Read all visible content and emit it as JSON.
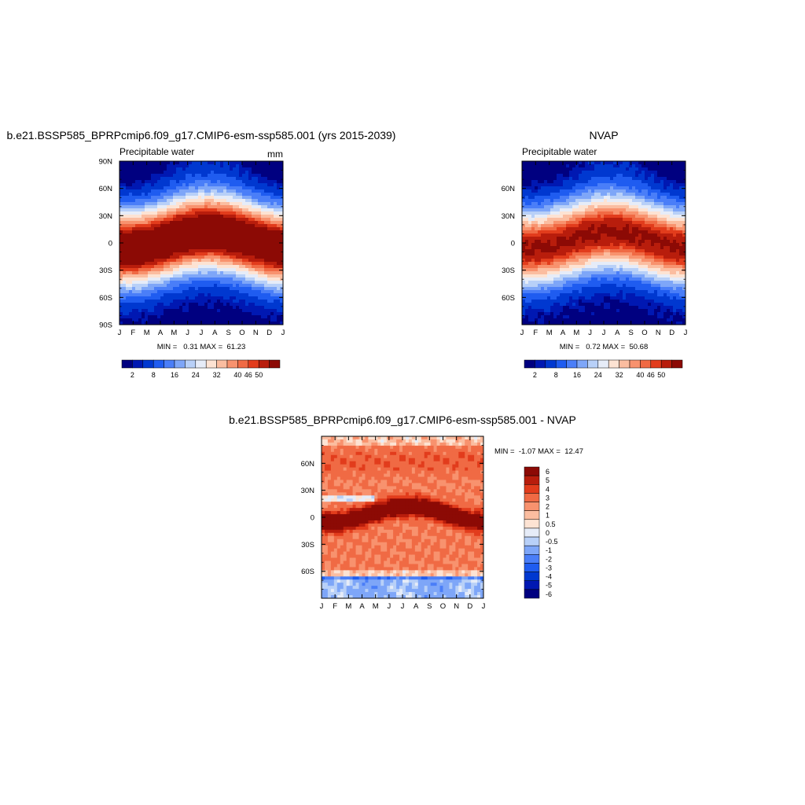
{
  "palette": [
    "#000080",
    "#0018b2",
    "#0038d0",
    "#1f5cf0",
    "#4a7ef8",
    "#7ea6f8",
    "#b8d0f8",
    "#e6ecf8",
    "#fde3d3",
    "#fbbda0",
    "#f8926e",
    "#f06a44",
    "#e23c1c",
    "#b81d0c",
    "#8c0a05"
  ],
  "chart_data": [
    {
      "id": "model",
      "type": "contour",
      "title": "b.e21.BSSP585_BPRPcmip6.f09_g17.CMIP6-esm-ssp585.001 (yrs 2015-2039)",
      "left_label": "Precipitable water",
      "right_label": "mm",
      "x_tick_labels": [
        "J",
        "F",
        "M",
        "A",
        "M",
        "J",
        "J",
        "A",
        "S",
        "O",
        "N",
        "D",
        "J"
      ],
      "y_tick_labels": [
        "90N",
        "60N",
        "30N",
        "0",
        "30S",
        "60S",
        "90S"
      ],
      "y_range": [
        -90,
        90
      ],
      "stats_text": "MIN =   0.31 MAX =  61.23",
      "colorbar_labels": [
        "2",
        "8",
        "16",
        "24",
        "32",
        "40",
        "46",
        "50"
      ],
      "colorbar_levels": [
        2,
        4,
        8,
        12,
        16,
        20,
        24,
        28,
        32,
        36,
        40,
        43,
        46,
        50
      ],
      "field": {
        "amp": 60,
        "width": 30,
        "noise": 1.2
      }
    },
    {
      "id": "obs",
      "type": "contour",
      "title": "NVAP",
      "left_label": "Precipitable water",
      "right_label": "",
      "x_tick_labels": [
        "J",
        "F",
        "M",
        "A",
        "M",
        "J",
        "J",
        "A",
        "S",
        "O",
        "N",
        "D",
        "J"
      ],
      "y_tick_labels": [
        "60N",
        "30N",
        "0",
        "30S",
        "60S"
      ],
      "y_range": [
        -90,
        90
      ],
      "stats_text": "MIN =   0.72 MAX =  50.68",
      "colorbar_labels": [
        "2",
        "8",
        "16",
        "24",
        "32",
        "40",
        "46",
        "50"
      ],
      "colorbar_levels": [
        2,
        4,
        8,
        12,
        16,
        20,
        24,
        28,
        32,
        36,
        40,
        43,
        46,
        50
      ],
      "field": {
        "amp": 51,
        "width": 30,
        "noise": 1.5
      }
    },
    {
      "id": "diff",
      "type": "contour",
      "title": "b.e21.BSSP585_BPRPcmip6.f09_g17.CMIP6-esm-ssp585.001 - NVAP",
      "left_label": "",
      "right_label": "",
      "x_tick_labels": [
        "J",
        "F",
        "M",
        "A",
        "M",
        "J",
        "J",
        "A",
        "S",
        "O",
        "N",
        "D",
        "J"
      ],
      "y_tick_labels": [
        "60N",
        "30N",
        "0",
        "30S",
        "60S"
      ],
      "y_range": [
        -90,
        90
      ],
      "stats_text": "MIN =  -1.07 MAX =  12.47",
      "colorbar_labels": [
        "6",
        "5",
        "4",
        "3",
        "2",
        "1",
        "0.5",
        "0",
        "-0.5",
        "-1",
        "-2",
        "-3",
        "-4",
        "-5",
        "-6"
      ],
      "colorbar_levels": [
        -6,
        -5,
        -4,
        -3,
        -2,
        -1,
        -0.5,
        0,
        0.5,
        1,
        2,
        3,
        4,
        5,
        6
      ],
      "field": {
        "amp": 0,
        "width": 0,
        "noise": 0
      }
    }
  ]
}
